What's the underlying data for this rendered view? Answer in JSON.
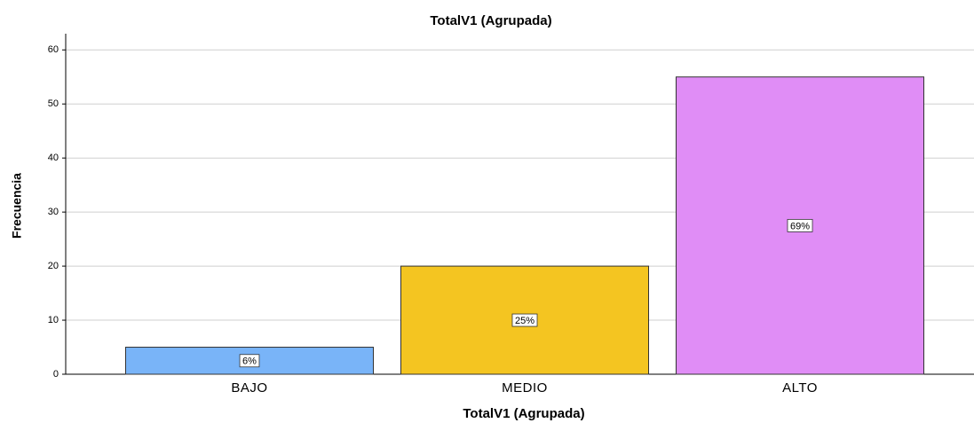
{
  "chart_data": {
    "type": "bar",
    "title": "TotalV1 (Agrupada)",
    "x_label": "TotalV1 (Agrupada)",
    "y_label": "Frecuencia",
    "categories": [
      "BAJO",
      "MEDIO",
      "ALTO"
    ],
    "values": [
      5,
      20,
      55
    ],
    "value_labels": [
      "6%",
      "25%",
      "69%"
    ],
    "colors": [
      "#79b4f8",
      "#f4c521",
      "#e08df6"
    ],
    "ylim": [
      0,
      63
    ],
    "yticks": [
      0,
      10,
      20,
      30,
      40,
      50,
      60
    ],
    "grid": true
  }
}
